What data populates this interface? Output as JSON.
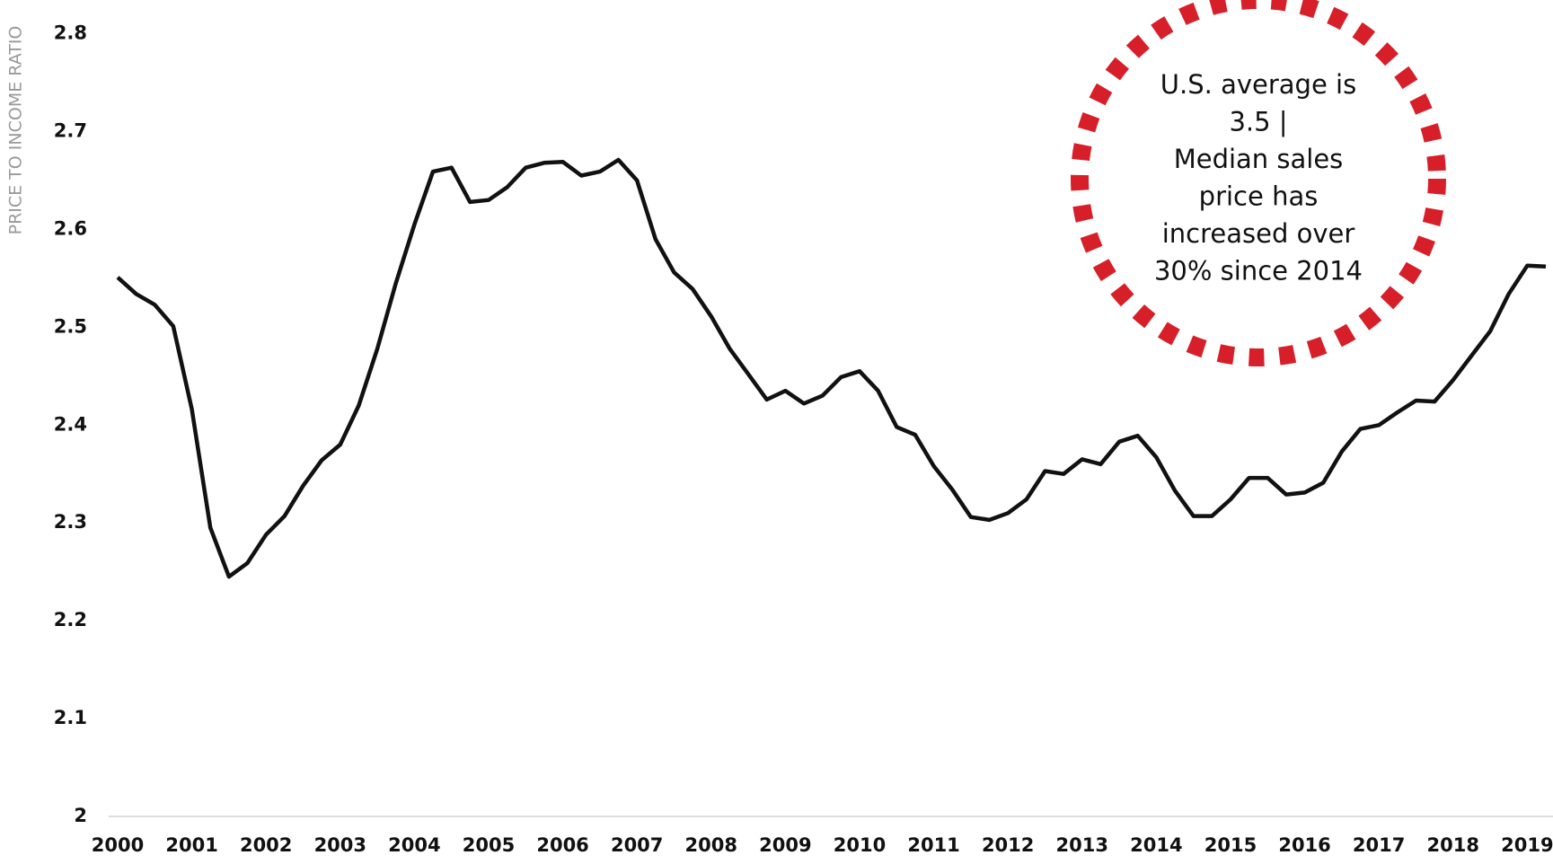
{
  "chart_data": {
    "type": "line",
    "y_label": "PRICE TO INCOME RATIO",
    "annotation": [
      "U.S. average is",
      "3.5 |",
      "Median sales",
      "price has",
      "increased over",
      "30% since 2014"
    ],
    "annotation_color": "#d71f2a",
    "color": "#111111",
    "x": [
      2000,
      2000.25,
      2000.5,
      2000.75,
      2001,
      2001.25,
      2001.5,
      2001.75,
      2002,
      2002.25,
      2002.5,
      2002.75,
      2003,
      2003.25,
      2003.5,
      2003.75,
      2004,
      2004.25,
      2004.5,
      2004.75,
      2005,
      2005.25,
      2005.5,
      2005.75,
      2006,
      2006.25,
      2006.5,
      2006.75,
      2007,
      2007.25,
      2007.5,
      2007.75,
      2008,
      2008.25,
      2008.5,
      2008.75,
      2009,
      2009.25,
      2009.5,
      2009.75,
      2010,
      2010.25,
      2010.5,
      2010.75,
      2011,
      2011.25,
      2011.5,
      2011.75,
      2012,
      2012.25,
      2012.5,
      2012.75,
      2013,
      2013.25,
      2013.5,
      2013.75,
      2014,
      2014.25,
      2014.5,
      2014.75,
      2015,
      2015.25,
      2015.5,
      2015.75,
      2016,
      2016.25,
      2016.5,
      2016.75,
      2017,
      2017.25,
      2017.5,
      2017.75,
      2018,
      2018.25,
      2018.5,
      2018.75,
      2019,
      2019.25
    ],
    "values": [
      2.551,
      2.534,
      2.523,
      2.501,
      2.416,
      2.295,
      2.245,
      2.259,
      2.288,
      2.307,
      2.338,
      2.364,
      2.38,
      2.42,
      2.478,
      2.545,
      2.605,
      2.659,
      2.663,
      2.628,
      2.63,
      2.643,
      2.663,
      2.668,
      2.669,
      2.655,
      2.659,
      2.671,
      2.65,
      2.59,
      2.556,
      2.539,
      2.511,
      2.478,
      2.452,
      2.426,
      2.435,
      2.422,
      2.43,
      2.449,
      2.455,
      2.435,
      2.398,
      2.39,
      2.358,
      2.334,
      2.306,
      2.303,
      2.31,
      2.324,
      2.353,
      2.35,
      2.365,
      2.36,
      2.383,
      2.389,
      2.367,
      2.333,
      2.307,
      2.307,
      2.324,
      2.346,
      2.346,
      2.329,
      2.331,
      2.341,
      2.373,
      2.396,
      2.4,
      2.413,
      2.425,
      2.424,
      2.446,
      2.471,
      2.496,
      2.534,
      2.563,
      2.562
    ],
    "xlim": [
      2000,
      2019.25
    ],
    "xticks": [
      2000,
      2001,
      2002,
      2003,
      2004,
      2005,
      2006,
      2007,
      2008,
      2009,
      2010,
      2011,
      2012,
      2013,
      2014,
      2015,
      2016,
      2017,
      2018,
      2019
    ],
    "ylim": [
      2,
      2.8
    ],
    "yticks": [
      2,
      2.1,
      2.2,
      2.3,
      2.4,
      2.5,
      2.6,
      2.7,
      2.8
    ],
    "grid": false
  }
}
